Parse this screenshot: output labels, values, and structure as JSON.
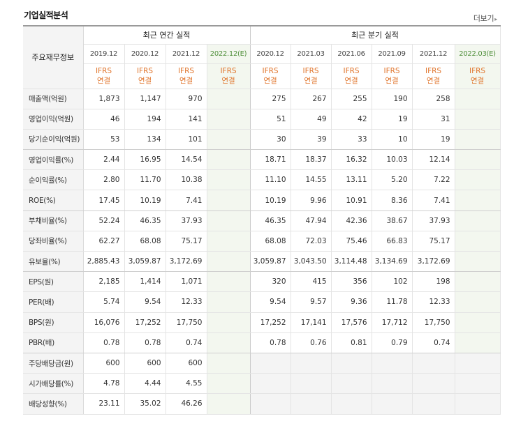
{
  "section": {
    "title": "기업실적분석",
    "more_label": "더보기"
  },
  "table": {
    "row_header": "주요재무정보",
    "group_annual": "최근 연간 실적",
    "group_quarter": "최근 분기 실적",
    "annual_periods": [
      "2019.12",
      "2020.12",
      "2021.12",
      "2022.12(E)"
    ],
    "quarter_periods": [
      "2020.12",
      "2021.03",
      "2021.06",
      "2021.09",
      "2021.12",
      "2022.03(E)"
    ],
    "basis_line1": "IFRS",
    "basis_line2": "연결",
    "rows": [
      {
        "label": "매출액(억원)",
        "annual": [
          "1,873",
          "1,147",
          "970",
          ""
        ],
        "quarter": [
          "275",
          "267",
          "255",
          "190",
          "258",
          ""
        ]
      },
      {
        "label": "영업이익(억원)",
        "annual": [
          "46",
          "194",
          "141",
          ""
        ],
        "quarter": [
          "51",
          "49",
          "42",
          "19",
          "31",
          ""
        ]
      },
      {
        "label": "당기순이익(억원)",
        "annual": [
          "53",
          "134",
          "101",
          ""
        ],
        "quarter": [
          "30",
          "39",
          "33",
          "10",
          "19",
          ""
        ]
      },
      {
        "label": "영업이익률(%)",
        "annual": [
          "2.44",
          "16.95",
          "14.54",
          ""
        ],
        "quarter": [
          "18.71",
          "18.37",
          "16.32",
          "10.03",
          "12.14",
          ""
        ]
      },
      {
        "label": "순이익률(%)",
        "annual": [
          "2.80",
          "11.70",
          "10.38",
          ""
        ],
        "quarter": [
          "11.10",
          "14.55",
          "13.11",
          "5.20",
          "7.22",
          ""
        ]
      },
      {
        "label": "ROE(%)",
        "annual": [
          "17.45",
          "10.19",
          "7.41",
          ""
        ],
        "quarter": [
          "10.19",
          "9.96",
          "10.91",
          "8.36",
          "7.41",
          ""
        ]
      },
      {
        "label": "부채비율(%)",
        "annual": [
          "52.24",
          "46.35",
          "37.93",
          ""
        ],
        "quarter": [
          "46.35",
          "47.94",
          "42.36",
          "38.67",
          "37.93",
          ""
        ]
      },
      {
        "label": "당좌비율(%)",
        "annual": [
          "62.27",
          "68.08",
          "75.17",
          ""
        ],
        "quarter": [
          "68.08",
          "72.03",
          "75.46",
          "66.83",
          "75.17",
          ""
        ]
      },
      {
        "label": "유보율(%)",
        "annual": [
          "2,885.43",
          "3,059.87",
          "3,172.69",
          ""
        ],
        "quarter": [
          "3,059.87",
          "3,043.50",
          "3,114.48",
          "3,134.69",
          "3,172.69",
          ""
        ]
      },
      {
        "label": "EPS(원)",
        "annual": [
          "2,185",
          "1,414",
          "1,071",
          ""
        ],
        "quarter": [
          "320",
          "415",
          "356",
          "102",
          "198",
          ""
        ]
      },
      {
        "label": "PER(배)",
        "annual": [
          "5.74",
          "9.54",
          "12.33",
          ""
        ],
        "quarter": [
          "9.54",
          "9.57",
          "9.36",
          "11.78",
          "12.33",
          ""
        ]
      },
      {
        "label": "BPS(원)",
        "annual": [
          "16,076",
          "17,252",
          "17,750",
          ""
        ],
        "quarter": [
          "17,252",
          "17,141",
          "17,576",
          "17,712",
          "17,750",
          ""
        ]
      },
      {
        "label": "PBR(배)",
        "annual": [
          "0.78",
          "0.78",
          "0.74",
          ""
        ],
        "quarter": [
          "0.78",
          "0.76",
          "0.81",
          "0.79",
          "0.74",
          ""
        ]
      },
      {
        "label": "주당배당금(원)",
        "annual": [
          "600",
          "600",
          "600",
          ""
        ],
        "quarter": null
      },
      {
        "label": "시가배당률(%)",
        "annual": [
          "4.78",
          "4.44",
          "4.55",
          ""
        ],
        "quarter": null
      },
      {
        "label": "배당성향(%)",
        "annual": [
          "23.11",
          "35.02",
          "46.26",
          ""
        ],
        "quarter": null
      }
    ]
  }
}
